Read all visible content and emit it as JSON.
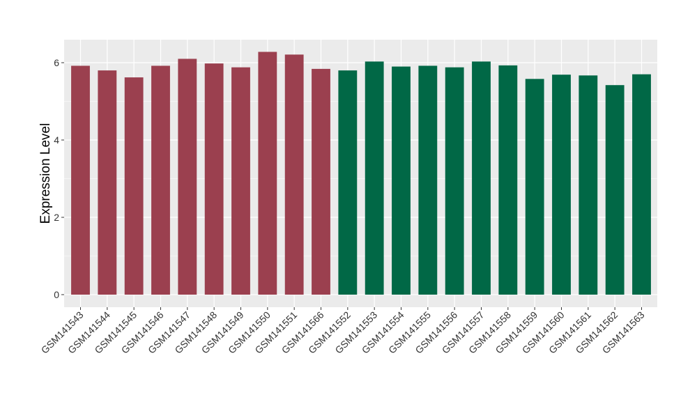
{
  "chart_data": {
    "type": "bar",
    "title": "",
    "xlabel": "",
    "ylabel": "Expression Level",
    "ylim": [
      0,
      6.6
    ],
    "yticks": [
      0,
      2,
      4,
      6
    ],
    "ytick_labels": [
      "0",
      "2",
      "4",
      "6"
    ],
    "grid": true,
    "legend": "none",
    "categories": [
      "GSM141543",
      "GSM141544",
      "GSM141545",
      "GSM141546",
      "GSM141547",
      "GSM141548",
      "GSM141549",
      "GSM141550",
      "GSM141551",
      "GSM141566",
      "GSM141552",
      "GSM141553",
      "GSM141554",
      "GSM141555",
      "GSM141556",
      "GSM141557",
      "GSM141558",
      "GSM141559",
      "GSM141560",
      "GSM141561",
      "GSM141562",
      "GSM141563"
    ],
    "values": [
      5.92,
      5.8,
      5.62,
      5.92,
      6.1,
      5.98,
      5.88,
      6.28,
      6.21,
      5.84,
      5.8,
      6.03,
      5.9,
      5.92,
      5.88,
      6.03,
      5.93,
      5.58,
      5.69,
      5.67,
      5.42,
      5.7
    ],
    "bar_colors": [
      "#9b404f",
      "#9b404f",
      "#9b404f",
      "#9b404f",
      "#9b404f",
      "#9b404f",
      "#9b404f",
      "#9b404f",
      "#9b404f",
      "#9b404f",
      "#016846",
      "#016846",
      "#016846",
      "#016846",
      "#016846",
      "#016846",
      "#016846",
      "#016846",
      "#016846",
      "#016846",
      "#016846",
      "#016846"
    ],
    "panel_background": "#ebebeb",
    "grid_color": "#ffffff"
  }
}
